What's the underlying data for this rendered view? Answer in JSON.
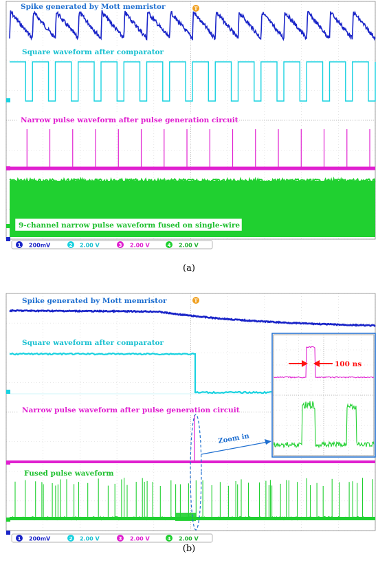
{
  "colors": {
    "ch1": "#1a25c8",
    "ch2": "#19d2e0",
    "ch3": "#e020d0",
    "ch4": "#20d030",
    "annotation": "#1f6fd0",
    "arrow": "#ff1010",
    "screen_bg": "#ffffff",
    "grid": "#d0d0d0"
  },
  "panel_a": {
    "sub_label": "(a)",
    "trigger_marker": "T",
    "traces": [
      {
        "channel": "1",
        "label": "Spike generated by Mott memristor"
      },
      {
        "channel": "2",
        "label": "Square waveform after comparator"
      },
      {
        "channel": "3",
        "label": "Narrow pulse waveform after pulse generation circuit"
      },
      {
        "channel": "4",
        "label": "9-channel narrow pulse waveform fused on single-wire"
      }
    ],
    "channel_bar": [
      {
        "num": "1",
        "scale": "200mV"
      },
      {
        "num": "2",
        "scale": "2.00 V"
      },
      {
        "num": "3",
        "scale": "2.00 V"
      },
      {
        "num": "4",
        "scale": "2.00 V"
      }
    ]
  },
  "panel_b": {
    "sub_label": "(b)",
    "trigger_marker": "T",
    "traces": [
      {
        "channel": "1",
        "label": "Spike generated by Mott memristor"
      },
      {
        "channel": "2",
        "label": "Square waveform after comparator"
      },
      {
        "channel": "3",
        "label": "Narrow pulse waveform after pulse generation circuit"
      },
      {
        "channel": "4",
        "label": "Fused pulse waveform"
      }
    ],
    "zoom_label": "Zoom in",
    "inset_annotation": "100 ns",
    "channel_bar": [
      {
        "num": "1",
        "scale": "200mV"
      },
      {
        "num": "2",
        "scale": "2.00 V"
      },
      {
        "num": "3",
        "scale": "2.00 V"
      },
      {
        "num": "4",
        "scale": "2.00 V"
      }
    ]
  },
  "chart_data": [
    {
      "type": "line",
      "panel": "a",
      "series": [
        {
          "name": "Spike generated by Mott memristor",
          "spike_count": 16
        },
        {
          "name": "Square waveform after comparator",
          "pulse_count": 16
        },
        {
          "name": "Narrow pulse waveform after pulse generation circuit",
          "pulse_count": 16
        },
        {
          "name": "9-channel narrow pulse waveform fused on single-wire"
        }
      ],
      "channel_scales": [
        "200mV",
        "2.00 V",
        "2.00 V",
        "2.00 V"
      ]
    },
    {
      "type": "line",
      "panel": "b",
      "series": [
        {
          "name": "Spike generated by Mott memristor"
        },
        {
          "name": "Square waveform after comparator"
        },
        {
          "name": "Narrow pulse waveform after pulse generation circuit"
        },
        {
          "name": "Fused pulse waveform"
        }
      ],
      "inset": {
        "annotation": "100 ns"
      },
      "channel_scales": [
        "200mV",
        "2.00 V",
        "2.00 V",
        "2.00 V"
      ]
    }
  ]
}
